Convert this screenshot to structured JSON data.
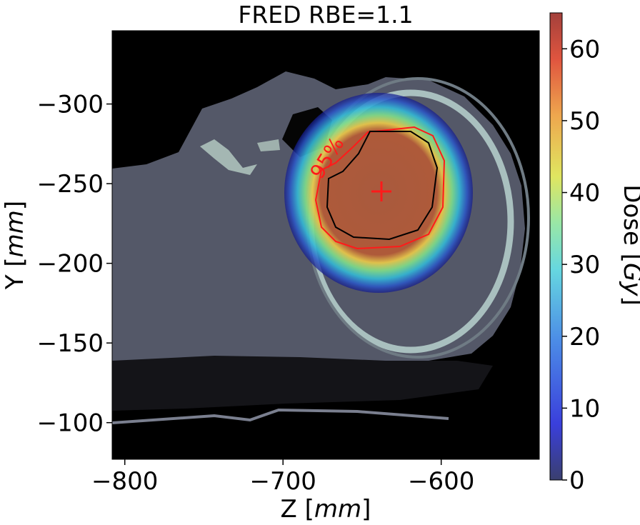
{
  "chart_data": {
    "type": "heatmap",
    "title": "FRED RBE=1.1",
    "xlabel": "Z [mm]",
    "ylabel": "Y [mm]",
    "colorbar_label": "Dose [Gy]",
    "xlim": [
      -808,
      -538
    ],
    "ylim": [
      -346,
      -77
    ],
    "y_inverted": true,
    "x_ticks": [
      {
        "value": -800,
        "label": "−800"
      },
      {
        "value": -700,
        "label": "−700"
      },
      {
        "value": -600,
        "label": "−600"
      }
    ],
    "y_ticks": [
      {
        "value": -300,
        "label": "−300"
      },
      {
        "value": -250,
        "label": "−250"
      },
      {
        "value": -200,
        "label": "−200"
      },
      {
        "value": -150,
        "label": "−150"
      },
      {
        "value": -100,
        "label": "−100"
      }
    ],
    "colorbar": {
      "min": 0,
      "max": 65,
      "colormap": "jet",
      "ticks": [
        0,
        10,
        20,
        30,
        40,
        50,
        60
      ]
    },
    "dose_distribution": {
      "center": {
        "z": -639,
        "y": -244
      },
      "high_dose_extent": {
        "z": [
          -676,
          -613
        ],
        "y": [
          -285,
          -208
        ]
      },
      "low_dose_extent": {
        "z": [
          -687,
          -602
        ],
        "y": [
          -300,
          -185
        ]
      }
    },
    "contours": [
      {
        "label": "95%",
        "color": "#ff0000",
        "annotation_at": {
          "z": -667,
          "y": -265
        }
      },
      {
        "label": "",
        "color": "#000000"
      }
    ],
    "target_marker": {
      "z": -636,
      "y": -244,
      "color": "#ff0000",
      "symbol": "+"
    }
  }
}
